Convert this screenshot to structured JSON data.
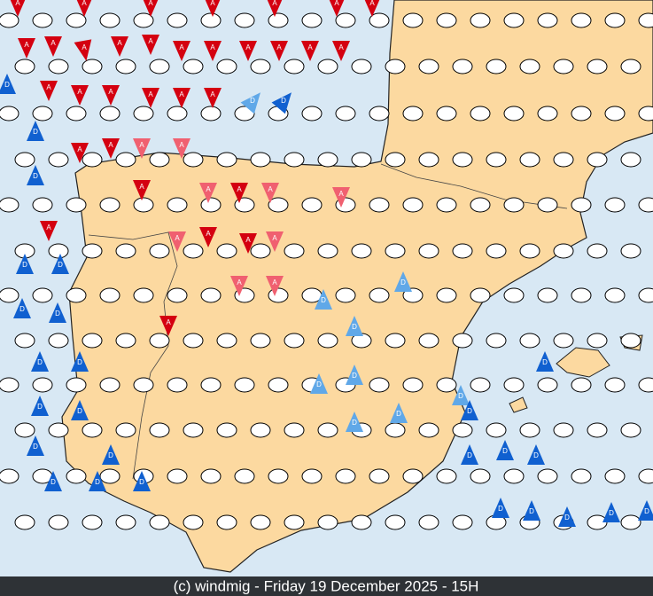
{
  "footer": "(c) windmig - Friday 19 December 2025 - 15H",
  "markers": [
    "A",
    "A",
    "A",
    "A",
    "A",
    "A",
    "A",
    "A",
    "A",
    "A",
    "A",
    "A",
    "A",
    "A",
    "A",
    "A",
    "A",
    "A",
    "A",
    "A",
    "A",
    "A",
    "A",
    "A",
    "A",
    "A",
    "A",
    "A",
    "A",
    "A",
    "A",
    "A",
    "A",
    "A",
    "A",
    "A",
    "A",
    "A",
    "A",
    "A",
    "A",
    "D",
    "D",
    "D",
    "D",
    "D",
    "D",
    "D",
    "D",
    "D",
    "D",
    "D",
    "D",
    "D",
    "D",
    "D",
    "D",
    "D",
    "D",
    "D",
    "D",
    "D",
    "D",
    "D",
    "D",
    "D",
    "D",
    "D",
    "D",
    "D",
    "D",
    "D",
    "D",
    "D",
    "D",
    "D",
    "D"
  ]
}
